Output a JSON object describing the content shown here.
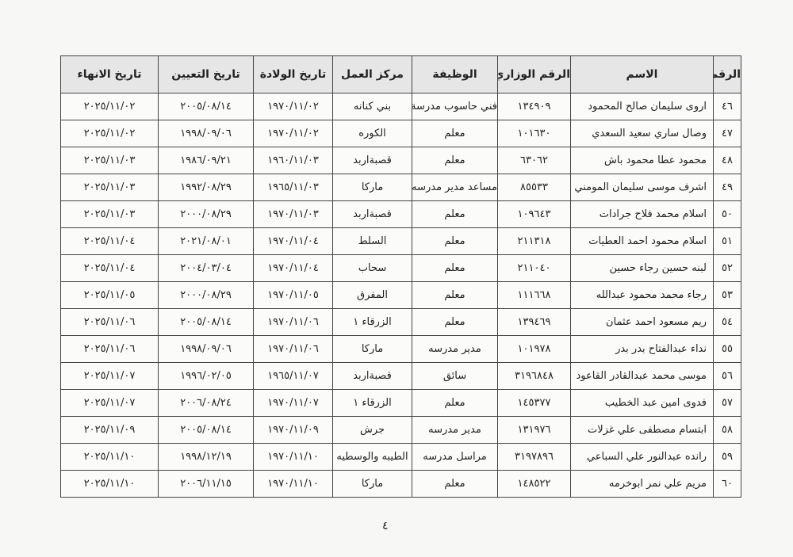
{
  "headers": [
    "الرقم",
    "الاسم",
    "الرقم الوزاري",
    "الوظيفة",
    "مركز العمل",
    "تاريخ الولادة",
    "تاريخ التعيين",
    "تاريخ الانهاء"
  ],
  "rows": [
    [
      "٤٦",
      "اروى سليمان صالح المحمود",
      "١٣٤٩٠٩",
      "فني حاسوب مدرسة",
      "بني كنانه",
      "١٩٧٠/١١/٠٢",
      "٢٠٠٥/٠٨/١٤",
      "٢٠٢٥/١١/٠٢"
    ],
    [
      "٤٧",
      "وصال ساري سعيد السعدي",
      "١٠١٦٣٠",
      "معلم",
      "الكوره",
      "١٩٧٠/١١/٠٢",
      "١٩٩٨/٠٩/٠٦",
      "٢٠٢٥/١١/٠٢"
    ],
    [
      "٤٨",
      "محمود عطا محمود باش",
      "٦٣٠٦٢",
      "معلم",
      "قصبةاربد",
      "١٩٦٠/١١/٠٣",
      "١٩٨٦/٠٩/٢١",
      "٢٠٢٥/١١/٠٣"
    ],
    [
      "٤٩",
      "اشرف موسى سليمان المومني",
      "٨٥٥٣٣",
      "مساعد مدير مدرسه",
      "ماركا",
      "١٩٦٥/١١/٠٣",
      "١٩٩٢/٠٨/٢٩",
      "٢٠٢٥/١١/٠٣"
    ],
    [
      "٥٠",
      "اسلام محمد فلاح جرادات",
      "١٠٩٦٤٣",
      "معلم",
      "قصبةاربد",
      "١٩٧٠/١١/٠٣",
      "٢٠٠٠/٠٨/٢٩",
      "٢٠٢٥/١١/٠٣"
    ],
    [
      "٥١",
      "اسلام محمود احمد العطيات",
      "٢١١٣١٨",
      "معلم",
      "السلط",
      "١٩٧٠/١١/٠٤",
      "٢٠٢١/٠٨/٠١",
      "٢٠٢٥/١١/٠٤"
    ],
    [
      "٥٢",
      "لبنه حسين رجاء حسين",
      "٢١١٠٤٠",
      "معلم",
      "سحاب",
      "١٩٧٠/١١/٠٤",
      "٢٠٠٤/٠٣/٠٤",
      "٢٠٢٥/١١/٠٤"
    ],
    [
      "٥٣",
      "رجاء محمد محمود عبدالله",
      "١١١٦٦٨",
      "معلم",
      "المفرق",
      "١٩٧٠/١١/٠٥",
      "٢٠٠٠/٠٨/٢٩",
      "٢٠٢٥/١١/٠٥"
    ],
    [
      "٥٤",
      "ريم مسعود احمد عثمان",
      "١٣٩٤٦٩",
      "معلم",
      "الزرقاء ١",
      "١٩٧٠/١١/٠٦",
      "٢٠٠٥/٠٨/١٤",
      "٢٠٢٥/١١/٠٦"
    ],
    [
      "٥٥",
      "نداء عبدالفتاح بدر بدر",
      "١٠١٩٧٨",
      "مدير مدرسه",
      "ماركا",
      "١٩٧٠/١١/٠٦",
      "١٩٩٨/٠٩/٠٦",
      "٢٠٢٥/١١/٠٦"
    ],
    [
      "٥٦",
      "موسى محمد عبدالقادر القاعود",
      "٣١٩٦٨٤٨",
      "سائق",
      "قصبةاربد",
      "١٩٦٥/١١/٠٧",
      "١٩٩٦/٠٢/٠٥",
      "٢٠٢٥/١١/٠٧"
    ],
    [
      "٥٧",
      "فدوى امين عبد الخطيب",
      "١٤٥٣٧٧",
      "معلم",
      "الزرقاء ١",
      "١٩٧٠/١١/٠٧",
      "٢٠٠٦/٠٨/٢٤",
      "٢٠٢٥/١١/٠٧"
    ],
    [
      "٥٨",
      "ابتسام مصطفى علي غزلات",
      "١٣١٩٧٦",
      "مدير مدرسه",
      "جرش",
      "١٩٧٠/١١/٠٩",
      "٢٠٠٥/٠٨/١٤",
      "٢٠٢٥/١١/٠٩"
    ],
    [
      "٥٩",
      "رانده عبدالنور علي السباعي",
      "٣١٩٧٨٩٦",
      "مراسل مدرسه",
      "الطيبه والوسطيه",
      "١٩٧٠/١١/١٠",
      "١٩٩٨/١٢/١٩",
      "٢٠٢٥/١١/١٠"
    ],
    [
      "٦٠",
      "مريم علي نمر ابوخرمه",
      "١٤٨٥٢٢",
      "معلم",
      "ماركا",
      "١٩٧٠/١١/١٠",
      "٢٠٠٦/١١/١٥",
      "٢٠٢٥/١١/١٠"
    ]
  ],
  "page_number": "٤"
}
